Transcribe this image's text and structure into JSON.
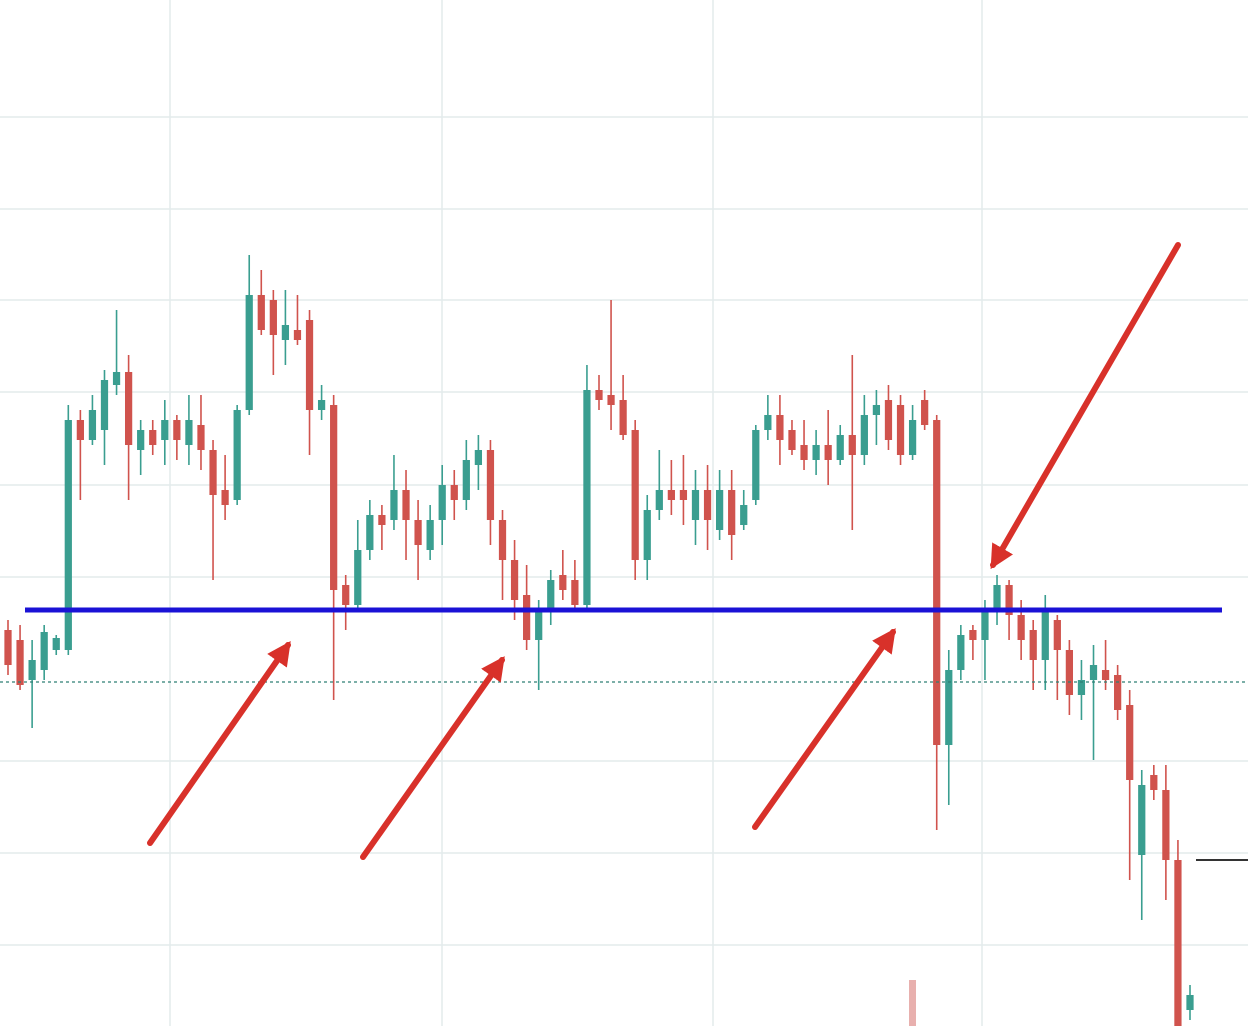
{
  "chart_data": {
    "type": "candlestick",
    "ylim": [
      0,
      1026
    ],
    "up_color": "#3a9e90",
    "down_color": "#d0534d",
    "ohlc": [
      [
        396,
        406,
        351,
        361
      ],
      [
        386,
        401,
        336,
        341
      ],
      [
        346,
        386,
        298,
        366
      ],
      [
        356,
        401,
        346,
        394
      ],
      [
        376,
        391,
        371,
        388
      ],
      [
        376,
        621,
        371,
        606
      ],
      [
        606,
        616,
        526,
        586
      ],
      [
        586,
        631,
        581,
        616
      ],
      [
        596,
        656,
        561,
        646
      ],
      [
        641,
        716,
        631,
        654
      ],
      [
        654,
        671,
        526,
        581
      ],
      [
        576,
        606,
        551,
        596
      ],
      [
        596,
        606,
        571,
        581
      ],
      [
        586,
        626,
        561,
        606
      ],
      [
        606,
        611,
        566,
        586
      ],
      [
        581,
        631,
        561,
        606
      ],
      [
        601,
        631,
        556,
        576
      ],
      [
        576,
        586,
        446,
        531
      ],
      [
        536,
        571,
        506,
        521
      ],
      [
        526,
        621,
        521,
        616
      ],
      [
        616,
        771,
        611,
        731
      ],
      [
        731,
        756,
        691,
        696
      ],
      [
        726,
        736,
        651,
        691
      ],
      [
        686,
        736,
        661,
        701
      ],
      [
        696,
        731,
        681,
        686
      ],
      [
        706,
        716,
        571,
        616
      ],
      [
        616,
        641,
        606,
        626
      ],
      [
        621,
        631,
        326,
        436
      ],
      [
        441,
        451,
        396,
        421
      ],
      [
        421,
        506,
        416,
        476
      ],
      [
        476,
        526,
        466,
        511
      ],
      [
        511,
        521,
        476,
        501
      ],
      [
        506,
        571,
        496,
        536
      ],
      [
        536,
        556,
        466,
        506
      ],
      [
        506,
        526,
        446,
        481
      ],
      [
        476,
        521,
        466,
        506
      ],
      [
        506,
        561,
        481,
        541
      ],
      [
        541,
        556,
        506,
        526
      ],
      [
        526,
        586,
        516,
        566
      ],
      [
        561,
        591,
        536,
        576
      ],
      [
        576,
        586,
        481,
        506
      ],
      [
        506,
        516,
        426,
        466
      ],
      [
        466,
        486,
        406,
        426
      ],
      [
        431,
        461,
        376,
        386
      ],
      [
        386,
        426,
        336,
        416
      ],
      [
        416,
        456,
        401,
        446
      ],
      [
        451,
        476,
        426,
        436
      ],
      [
        446,
        466,
        416,
        421
      ],
      [
        421,
        661,
        416,
        636
      ],
      [
        636,
        651,
        616,
        626
      ],
      [
        631,
        726,
        596,
        621
      ],
      [
        626,
        651,
        586,
        591
      ],
      [
        596,
        606,
        446,
        466
      ],
      [
        466,
        531,
        446,
        516
      ],
      [
        516,
        576,
        506,
        536
      ],
      [
        536,
        566,
        511,
        526
      ],
      [
        536,
        571,
        501,
        526
      ],
      [
        506,
        556,
        481,
        536
      ],
      [
        536,
        561,
        476,
        506
      ],
      [
        496,
        556,
        486,
        536
      ],
      [
        536,
        556,
        466,
        491
      ],
      [
        501,
        536,
        496,
        521
      ],
      [
        526,
        601,
        521,
        596
      ],
      [
        596,
        631,
        586,
        611
      ],
      [
        611,
        631,
        561,
        586
      ],
      [
        596,
        606,
        571,
        576
      ],
      [
        581,
        606,
        556,
        566
      ],
      [
        566,
        596,
        551,
        581
      ],
      [
        581,
        616,
        541,
        566
      ],
      [
        566,
        601,
        561,
        591
      ],
      [
        591,
        671,
        496,
        571
      ],
      [
        571,
        631,
        561,
        611
      ],
      [
        611,
        636,
        581,
        621
      ],
      [
        626,
        641,
        576,
        586
      ],
      [
        621,
        631,
        561,
        571
      ],
      [
        571,
        621,
        566,
        606
      ],
      [
        626,
        636,
        596,
        601
      ],
      [
        606,
        611,
        196,
        281
      ],
      [
        281,
        376,
        221,
        356
      ],
      [
        356,
        401,
        346,
        391
      ],
      [
        396,
        401,
        366,
        386
      ],
      [
        386,
        426,
        346,
        416
      ],
      [
        414,
        451,
        401,
        441
      ],
      [
        441,
        446,
        386,
        411
      ],
      [
        411,
        426,
        366,
        386
      ],
      [
        396,
        406,
        336,
        366
      ],
      [
        366,
        431,
        336,
        416
      ],
      [
        406,
        411,
        326,
        376
      ],
      [
        376,
        386,
        311,
        331
      ],
      [
        331,
        366,
        306,
        346
      ],
      [
        346,
        381,
        266,
        361
      ],
      [
        356,
        386,
        336,
        346
      ],
      [
        351,
        361,
        306,
        316
      ],
      [
        321,
        336,
        146,
        246
      ],
      [
        171,
        256,
        106,
        241
      ],
      [
        251,
        261,
        226,
        236
      ],
      [
        236,
        261,
        126,
        166
      ],
      [
        166,
        186,
        0,
        0
      ],
      [
        16,
        41,
        6,
        31
      ]
    ],
    "lines": [
      {
        "value": 416,
        "color": "#1a12d6",
        "style": "solid"
      },
      {
        "value": 344,
        "color": "#2f7f73",
        "style": "dashed"
      }
    ]
  }
}
